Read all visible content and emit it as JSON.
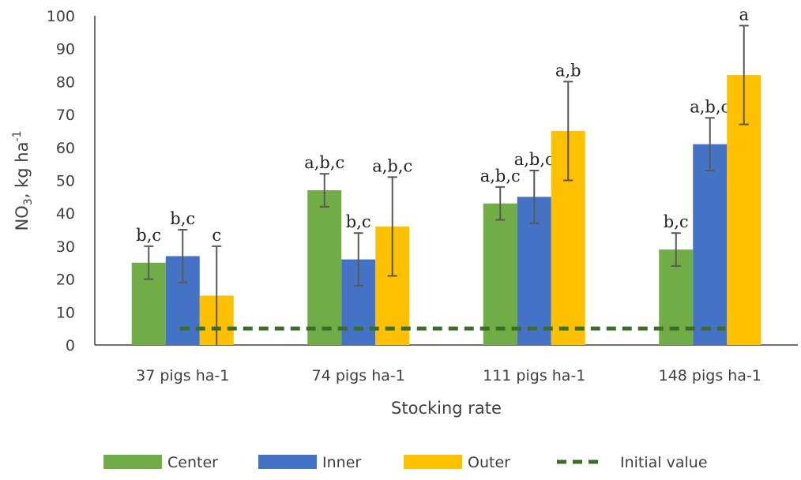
{
  "chart_data": {
    "type": "bar",
    "title": "",
    "xlabel": "Stocking rate",
    "ylabel": "NO3, kg ha-1",
    "ylabel_parts": {
      "base": "NO",
      "sub": "3",
      "mid": ", kg ha",
      "sup": "-1"
    },
    "ylim": [
      0,
      100
    ],
    "yticks": [
      0,
      10,
      20,
      30,
      40,
      50,
      60,
      70,
      80,
      90,
      100
    ],
    "grid": false,
    "legend_position": "bottom",
    "categories": [
      "37 pigs ha-1",
      "74 pigs ha-1",
      "111 pigs ha-1",
      "148 pigs ha-1"
    ],
    "series": [
      {
        "name": "Center",
        "color": "#70ad47",
        "values": [
          25,
          47,
          43,
          29
        ],
        "error": [
          5,
          5,
          5,
          5
        ],
        "labels": [
          "b,c",
          "a,b,c",
          "a,b,c",
          "b,c"
        ]
      },
      {
        "name": "Inner",
        "color": "#4472c4",
        "values": [
          27,
          26,
          45,
          61
        ],
        "error": [
          8,
          8,
          8,
          8
        ],
        "labels": [
          "b,c",
          "b,c",
          "a,b,c",
          "a,b,c"
        ]
      },
      {
        "name": "Outer",
        "color": "#ffc000",
        "values": [
          15,
          36,
          65,
          82
        ],
        "error": [
          15,
          15,
          15,
          15
        ],
        "labels": [
          "c",
          "a,b,c",
          "a,b",
          "a"
        ]
      }
    ],
    "reference_line": {
      "name": "Initial value",
      "value": 5,
      "color": "#3a6e2a",
      "style": "dashed"
    }
  }
}
